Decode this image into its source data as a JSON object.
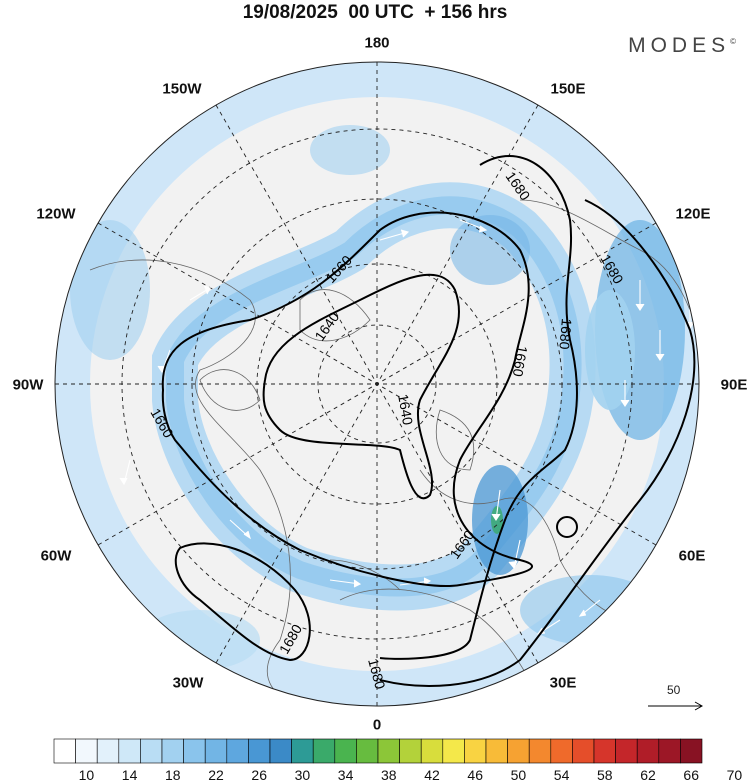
{
  "header": {
    "title": "19/08/2025  00 UTC  + 156 hrs",
    "brand": "MODES",
    "brand_mark": "©"
  },
  "map": {
    "projection": "north polar stereographic",
    "longitude_labels": {
      "top": "180",
      "bottom": "0",
      "left": "90W",
      "right": "90E",
      "upper_left_1": "150W",
      "upper_left_2": "120W",
      "upper_right_1": "150E",
      "upper_right_2": "120E",
      "lower_left_1": "60W",
      "lower_left_2": "30W",
      "lower_right_1": "60E",
      "lower_right_2": "30E"
    },
    "contour_labels": [
      "1680",
      "1680",
      "1660",
      "1640",
      "1660",
      "1640",
      "1660",
      "1680",
      "1680",
      "1660",
      "1680"
    ]
  },
  "vector_scale": {
    "label": "50"
  },
  "colorbar": {
    "ticks": [
      "10",
      "14",
      "18",
      "22",
      "26",
      "30",
      "34",
      "38",
      "42",
      "46",
      "50",
      "54",
      "58",
      "62",
      "66",
      "70"
    ],
    "colors": [
      "#ffffff",
      "#f2f8fd",
      "#e2f1fb",
      "#cfe8f8",
      "#b9ddf4",
      "#a2d1f0",
      "#8ac4ec",
      "#72b5e5",
      "#5ea7df",
      "#4997d4",
      "#3b8ac7",
      "#2d9b96",
      "#3aaa6a",
      "#4ab44f",
      "#67bc3f",
      "#8cc638",
      "#b3d23a",
      "#d8dd3c",
      "#f4e84a",
      "#f9d342",
      "#f8bb38",
      "#f6a232",
      "#f3882e",
      "#ef6a2b",
      "#e54e2a",
      "#d6352b",
      "#c4262a",
      "#b01d28",
      "#9c1726",
      "#881223"
    ]
  }
}
